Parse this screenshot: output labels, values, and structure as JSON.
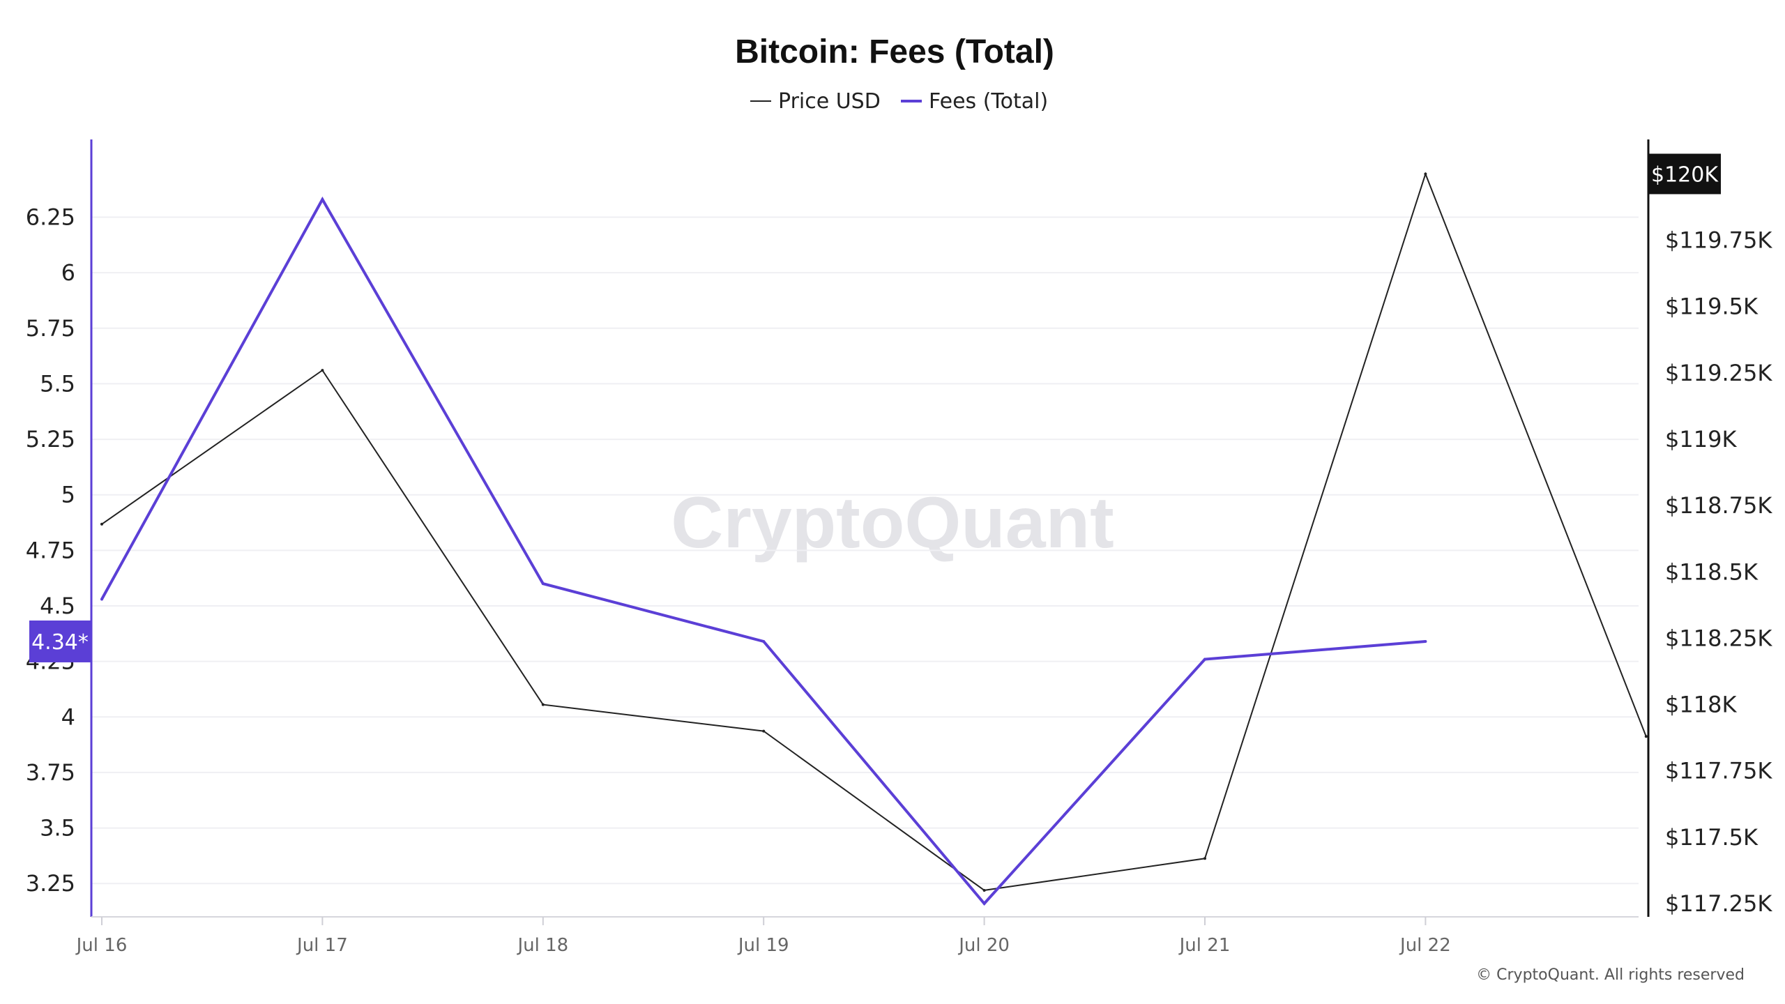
{
  "chart_data": {
    "type": "line",
    "title": "Bitcoin: Fees (Total)",
    "categories": [
      "Jul 16",
      "Jul 17",
      "Jul 18",
      "Jul 19",
      "Jul 20",
      "Jul 21",
      "Jul 22",
      ""
    ],
    "series": [
      {
        "name": "Price USD",
        "axis": "right",
        "color": "#222222",
        "values": [
          118680,
          119260,
          118000,
          117900,
          117300,
          117420,
          120000,
          117880
        ]
      },
      {
        "name": "Fees (Total)",
        "axis": "left",
        "color": "#5b3fd6",
        "values": [
          4.53,
          6.33,
          4.6,
          4.34,
          3.16,
          4.26,
          4.34,
          null
        ]
      }
    ],
    "y_left": {
      "ticks": [
        "6.25",
        "6",
        "5.75",
        "5.5",
        "5.25",
        "5",
        "4.75",
        "4.5",
        "4.25",
        "4",
        "3.75",
        "3.5",
        "3.25"
      ],
      "tick_values": [
        6.25,
        6,
        5.75,
        5.5,
        5.25,
        5,
        4.75,
        4.5,
        4.25,
        4,
        3.75,
        3.5,
        3.25
      ],
      "range": [
        3.1,
        6.6
      ],
      "current_badge": "4.34*",
      "badge_value": 4.34
    },
    "y_right": {
      "ticks": [
        "$119.75K",
        "$119.5K",
        "$119.25K",
        "$119K",
        "$118.75K",
        "$118.5K",
        "$118.25K",
        "$118K",
        "$117.75K",
        "$117.5K",
        "$117.25K"
      ],
      "tick_values": [
        119750,
        119500,
        119250,
        119000,
        118750,
        118500,
        118250,
        118000,
        117750,
        117500,
        117250
      ],
      "range": [
        117200,
        120130
      ],
      "current_badge": "$120K",
      "badge_value": 120000
    },
    "grid": true,
    "legend_position": "top-center"
  },
  "watermark": "CryptoQuant",
  "copyright": "© CryptoQuant. All rights reserved",
  "colors": {
    "fees": "#5b3fd6",
    "price": "#222222",
    "grid": "#efeff3",
    "badge_left_bg": "#5b3fd6",
    "badge_right_bg": "#111111"
  }
}
